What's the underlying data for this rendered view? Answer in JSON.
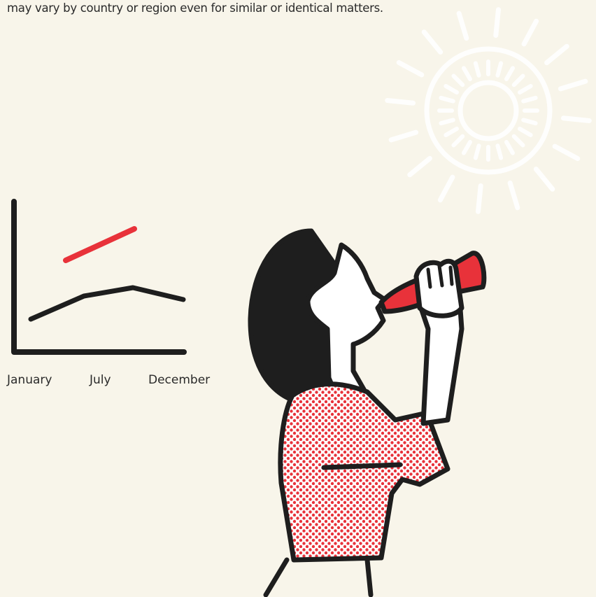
{
  "intro": {
    "text": "may vary by country or region even for similar or identical matters."
  },
  "illustration": {
    "months": [
      "January",
      "July",
      "December"
    ]
  }
}
